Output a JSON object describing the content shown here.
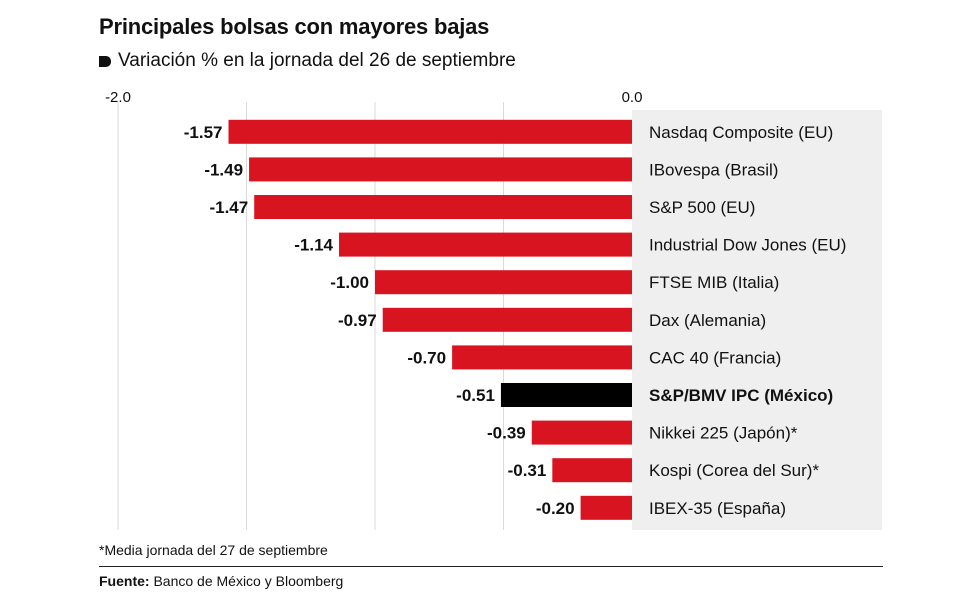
{
  "title": "Principales bolsas con mayores bajas",
  "subtitle": "Variación % en la jornada del 26 de septiembre",
  "footnote": "*Media jornada del 27 de septiembre",
  "source": {
    "label": "Fuente:",
    "text": " Banco de México y Bloomberg"
  },
  "colors": {
    "bar": "#d7141f",
    "highlight": "#000000",
    "label_panel": "#efefef",
    "grid": "#d9d9d9"
  },
  "chart_data": {
    "type": "bar",
    "orientation": "horizontal",
    "title": "Principales bolsas con mayores bajas",
    "subtitle": "Variación % en la jornada del 26 de septiembre",
    "xlim": [
      -2.0,
      0.0
    ],
    "tick_labels": [
      "-2.0",
      "0.0"
    ],
    "grid": true,
    "categories": [
      "Nasdaq Composite (EU)",
      "IBovespa (Brasil)",
      "S&P 500 (EU)",
      "Industrial Dow Jones (EU)",
      "FTSE MIB (Italia)",
      "Dax (Alemania)",
      "CAC 40 (Francia)",
      "S&P/BMV IPC (México)",
      "Nikkei 225 (Japón)*",
      "Kospi (Corea del Sur)*",
      "IBEX-35 (España)"
    ],
    "values": [
      -1.57,
      -1.49,
      -1.47,
      -1.14,
      -1.0,
      -0.97,
      -0.7,
      -0.51,
      -0.39,
      -0.31,
      -0.2
    ],
    "value_labels": [
      "-1.57",
      "-1.49",
      "-1.47",
      "-1.14",
      "-1.00",
      "-0.97",
      "-0.70",
      "-0.51",
      "-0.39",
      "-0.31",
      "-0.20"
    ],
    "highlight_category": "S&P/BMV IPC (México)"
  }
}
